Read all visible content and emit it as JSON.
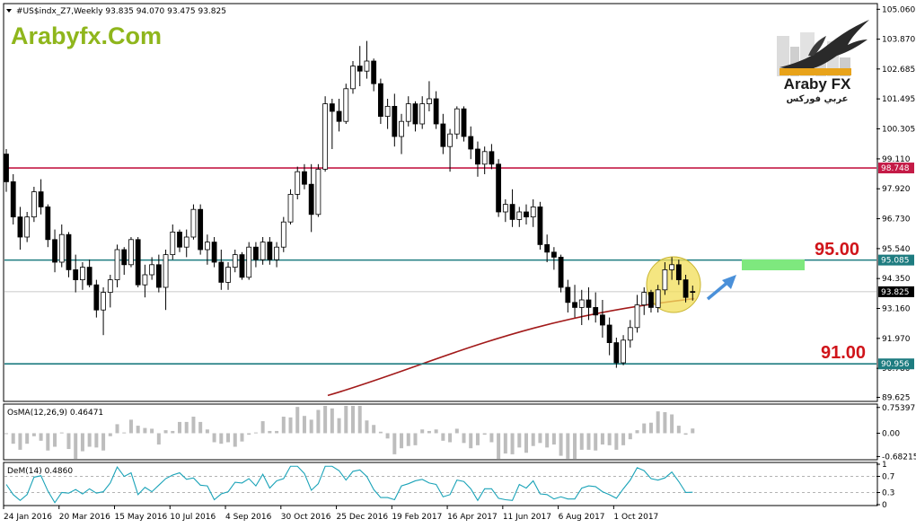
{
  "header": {
    "symbol_line": "#US$indx_Z7,Weekly  93.835 94.070 93.475 93.825",
    "watermark": "Arabyfx.Com"
  },
  "logo": {
    "name_en": "Araby FX",
    "name_ar": "عربي فوركس"
  },
  "annotations": {
    "level_high": "95.00",
    "level_low": "91.00"
  },
  "colors": {
    "candle_body": "#000000",
    "ma_line": "#a21a1a",
    "resistance_line": "#c41a46",
    "level_lines": "#1e7c80",
    "target_box": "#7ee87e",
    "highlight": "#f2df5e",
    "arrow": "#4a90d9",
    "osma": "#bdbdbd",
    "dem": "#1aa3b8"
  },
  "chart_data": [
    {
      "type": "candlestick",
      "title": "#US$indx_Z7,Weekly",
      "ohlc_header": {
        "open": 93.835,
        "high": 94.07,
        "low": 93.475,
        "close": 93.825
      },
      "y_ticks": [
        105.06,
        103.87,
        102.685,
        101.495,
        100.305,
        99.11,
        97.92,
        96.73,
        95.54,
        94.35,
        93.16,
        91.97,
        90.78,
        89.625
      ],
      "ylim": [
        89.5,
        105.25
      ],
      "x_ticks": [
        "24 Jan 2016",
        "20 Mar 2016",
        "15 May 2016",
        "10 Jul 2016",
        "4 Sep 2016",
        "30 Oct 2016",
        "25 Dec 2016",
        "19 Feb 2017",
        "16 Apr 2017",
        "11 Jun 2017",
        "6 Aug 2017",
        "1 Oct 2017"
      ],
      "price_tags": [
        {
          "value": 98.748,
          "label": "98.748",
          "color": "#c41a46"
        },
        {
          "value": 95.085,
          "label": "95.085",
          "color": "#1e7c80"
        },
        {
          "value": 93.825,
          "label": "93.825",
          "color": "#000000"
        },
        {
          "value": 90.956,
          "label": "90.956",
          "color": "#1e7c80"
        }
      ],
      "horizontal_lines": [
        98.748,
        95.085,
        90.956,
        93.825
      ],
      "moving_average": {
        "start": 89.7,
        "end": 93.55,
        "color": "#a21a1a"
      },
      "candles": [
        [
          99.3,
          99.5,
          97.8,
          98.2
        ],
        [
          98.2,
          98.5,
          96.5,
          96.8
        ],
        [
          96.8,
          97.2,
          95.5,
          96.0
        ],
        [
          96.0,
          97.0,
          95.8,
          96.8
        ],
        [
          96.8,
          98.0,
          96.6,
          97.8
        ],
        [
          97.8,
          98.3,
          96.9,
          97.2
        ],
        [
          97.2,
          97.3,
          95.6,
          95.9
        ],
        [
          95.9,
          96.3,
          94.6,
          95.0
        ],
        [
          95.0,
          96.5,
          94.8,
          96.1
        ],
        [
          96.1,
          96.2,
          94.4,
          94.7
        ],
        [
          94.7,
          95.3,
          93.8,
          94.3
        ],
        [
          94.3,
          95.0,
          93.9,
          94.8
        ],
        [
          94.8,
          95.1,
          94.0,
          94.1
        ],
        [
          94.1,
          94.3,
          92.8,
          93.1
        ],
        [
          93.1,
          94.0,
          92.1,
          93.8
        ],
        [
          93.8,
          94.5,
          93.2,
          94.3
        ],
        [
          94.3,
          95.7,
          94.0,
          95.5
        ],
        [
          95.5,
          95.6,
          94.5,
          94.9
        ],
        [
          94.9,
          96.0,
          94.8,
          95.9
        ],
        [
          95.9,
          96.0,
          94.0,
          94.1
        ],
        [
          94.1,
          94.9,
          93.6,
          94.5
        ],
        [
          94.5,
          95.2,
          94.3,
          94.9
        ],
        [
          94.9,
          95.3,
          93.8,
          94.0
        ],
        [
          94.0,
          95.5,
          93.1,
          95.3
        ],
        [
          95.3,
          96.5,
          95.1,
          96.2
        ],
        [
          96.2,
          96.3,
          95.4,
          95.6
        ],
        [
          95.6,
          96.3,
          95.2,
          96.0
        ],
        [
          96.0,
          97.3,
          95.9,
          97.1
        ],
        [
          97.1,
          97.3,
          95.3,
          95.5
        ],
        [
          95.5,
          96.1,
          94.9,
          95.8
        ],
        [
          95.8,
          96.0,
          94.8,
          95.0
        ],
        [
          95.0,
          95.5,
          93.9,
          94.2
        ],
        [
          94.2,
          95.0,
          93.9,
          94.8
        ],
        [
          94.8,
          95.5,
          94.6,
          95.3
        ],
        [
          95.3,
          95.4,
          94.3,
          94.4
        ],
        [
          94.4,
          95.8,
          94.3,
          95.6
        ],
        [
          95.6,
          95.8,
          94.8,
          95.1
        ],
        [
          95.1,
          96.0,
          94.9,
          95.8
        ],
        [
          95.8,
          96.0,
          94.9,
          95.1
        ],
        [
          95.1,
          95.8,
          94.8,
          95.6
        ],
        [
          95.6,
          96.8,
          95.4,
          96.6
        ],
        [
          96.6,
          97.9,
          96.5,
          97.7
        ],
        [
          97.7,
          98.8,
          97.5,
          98.6
        ],
        [
          98.6,
          98.9,
          97.9,
          98.1
        ],
        [
          98.1,
          98.9,
          96.2,
          96.9
        ],
        [
          96.9,
          98.9,
          96.8,
          98.7
        ],
        [
          98.7,
          101.6,
          98.6,
          101.3
        ],
        [
          101.3,
          101.5,
          99.5,
          101.0
        ],
        [
          101.0,
          101.5,
          100.2,
          100.6
        ],
        [
          100.6,
          102.1,
          100.5,
          101.9
        ],
        [
          101.9,
          103.0,
          101.7,
          102.8
        ],
        [
          102.8,
          103.6,
          102.0,
          102.6
        ],
        [
          102.6,
          103.8,
          102.3,
          103.0
        ],
        [
          103.0,
          103.1,
          101.8,
          102.1
        ],
        [
          102.1,
          102.3,
          100.5,
          100.8
        ],
        [
          100.8,
          101.5,
          100.3,
          101.2
        ],
        [
          101.2,
          101.7,
          99.6,
          100.0
        ],
        [
          100.0,
          100.9,
          99.3,
          100.6
        ],
        [
          100.6,
          101.6,
          100.4,
          101.3
        ],
        [
          101.3,
          101.4,
          100.2,
          100.5
        ],
        [
          100.5,
          101.6,
          100.3,
          101.3
        ],
        [
          101.3,
          102.2,
          101.0,
          101.5
        ],
        [
          101.5,
          101.8,
          100.3,
          100.5
        ],
        [
          100.5,
          100.9,
          99.3,
          99.6
        ],
        [
          99.6,
          100.3,
          98.6,
          100.1
        ],
        [
          100.1,
          101.2,
          99.9,
          101.1
        ],
        [
          101.1,
          101.2,
          99.8,
          100.0
        ],
        [
          100.0,
          100.4,
          99.1,
          99.5
        ],
        [
          99.5,
          99.8,
          98.4,
          98.9
        ],
        [
          98.9,
          99.6,
          98.5,
          99.4
        ],
        [
          99.4,
          99.7,
          98.7,
          98.9
        ],
        [
          98.9,
          99.1,
          96.8,
          97.0
        ],
        [
          97.0,
          97.5,
          96.6,
          97.3
        ],
        [
          97.3,
          97.9,
          96.4,
          96.7
        ],
        [
          96.7,
          97.2,
          96.4,
          97.0
        ],
        [
          97.0,
          97.3,
          96.5,
          96.8
        ],
        [
          96.8,
          97.5,
          96.4,
          97.2
        ],
        [
          97.2,
          97.4,
          95.5,
          95.7
        ],
        [
          95.7,
          96.1,
          95.0,
          95.4
        ],
        [
          95.4,
          95.6,
          94.7,
          95.2
        ],
        [
          95.2,
          95.3,
          93.8,
          94.0
        ],
        [
          94.0,
          94.3,
          93.0,
          93.4
        ],
        [
          93.4,
          94.1,
          92.8,
          93.2
        ],
        [
          93.2,
          93.9,
          92.5,
          93.5
        ],
        [
          93.5,
          94.0,
          92.7,
          93.2
        ],
        [
          93.2,
          93.8,
          92.6,
          92.9
        ],
        [
          92.9,
          93.5,
          92.0,
          92.5
        ],
        [
          92.5,
          92.8,
          91.3,
          91.8
        ],
        [
          91.8,
          92.0,
          90.8,
          91.0
        ],
        [
          91.0,
          92.1,
          90.9,
          91.9
        ],
        [
          91.9,
          92.7,
          91.6,
          92.4
        ],
        [
          92.4,
          93.7,
          92.2,
          93.3
        ],
        [
          93.3,
          94.0,
          92.9,
          93.8
        ],
        [
          93.8,
          93.9,
          93.0,
          93.2
        ],
        [
          93.2,
          94.1,
          93.0,
          93.9
        ],
        [
          93.9,
          95.0,
          93.7,
          94.7
        ],
        [
          94.7,
          95.2,
          94.3,
          94.9
        ],
        [
          94.9,
          95.1,
          94.1,
          94.3
        ],
        [
          94.3,
          94.5,
          93.4,
          93.6
        ],
        [
          93.835,
          94.07,
          93.475,
          93.825
        ]
      ]
    },
    {
      "type": "bar",
      "title": "OsMA(12,26,9) 0.46471",
      "y_ticks": [
        0.75397,
        0.0,
        -0.68215
      ],
      "ylim": [
        -0.75,
        0.8
      ]
    },
    {
      "type": "line",
      "title": "DeM(14) 0.4860",
      "y_ticks": [
        1,
        0.7,
        0.3,
        0
      ],
      "ylim": [
        0,
        1
      ],
      "levels": [
        0.7,
        0.3
      ]
    }
  ]
}
